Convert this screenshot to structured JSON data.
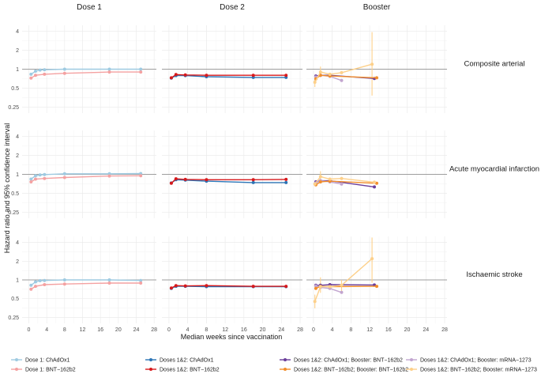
{
  "chart_data": {
    "type": "line",
    "ylabel": "Hazard ratio and 95% confidence interval",
    "xlabel": "Median weeks since vaccination",
    "x_ticks": [
      "0",
      "4",
      "8",
      "12",
      "16",
      "20",
      "24",
      "28"
    ],
    "y_ticks": [
      "0.25",
      "0.5",
      "1",
      "2",
      "4"
    ],
    "xlim": [
      -1.5,
      28.5
    ],
    "ylim": [
      0.2,
      5
    ],
    "y_scale": "log",
    "reference_line": 1,
    "columns": [
      "Dose 1",
      "Dose 2",
      "Booster"
    ],
    "rows": [
      "Composite arterial",
      "Acute myocardial infarction",
      "Ischaemic stroke"
    ],
    "series": [
      {
        "key": "d1_chad",
        "name": "Dose 1: ChAdOx1",
        "color": "#9ecae1",
        "column": "Dose 1",
        "data": {
          "Composite arterial": [
            [
              0.5,
              0.83
            ],
            [
              1.5,
              0.93
            ],
            [
              2.5,
              0.97
            ],
            [
              3.5,
              0.98
            ],
            [
              8,
              1.0
            ],
            [
              18,
              1.0
            ],
            [
              25,
              1.0
            ]
          ],
          "Acute myocardial infarction": [
            [
              0.5,
              0.84
            ],
            [
              1.5,
              0.95
            ],
            [
              2.5,
              0.98
            ],
            [
              3.5,
              0.99
            ],
            [
              8,
              1.02
            ],
            [
              18,
              1.02
            ],
            [
              25,
              1.03
            ]
          ],
          "Ischaemic stroke": [
            [
              0.5,
              0.82
            ],
            [
              1.5,
              0.93
            ],
            [
              2.5,
              0.97
            ],
            [
              3.5,
              0.98
            ],
            [
              8,
              1.0
            ],
            [
              18,
              1.0
            ],
            [
              25,
              0.98
            ]
          ]
        }
      },
      {
        "key": "d1_bnt",
        "name": "Dose 1: BNT−162b2",
        "color": "#f4a1a1",
        "column": "Dose 1",
        "data": {
          "Composite arterial": [
            [
              0.5,
              0.72
            ],
            [
              1.5,
              0.8
            ],
            [
              3.5,
              0.83
            ],
            [
              8,
              0.86
            ],
            [
              18,
              0.9
            ],
            [
              25,
              0.9
            ]
          ],
          "Acute myocardial infarction": [
            [
              0.5,
              0.76
            ],
            [
              1.5,
              0.84
            ],
            [
              3.5,
              0.86
            ],
            [
              8,
              0.89
            ],
            [
              18,
              0.94
            ],
            [
              25,
              0.95
            ]
          ],
          "Ischaemic stroke": [
            [
              0.5,
              0.71
            ],
            [
              1.5,
              0.79
            ],
            [
              3.5,
              0.84
            ],
            [
              8,
              0.86
            ],
            [
              18,
              0.89
            ],
            [
              25,
              0.89
            ]
          ]
        }
      },
      {
        "key": "d12_chad",
        "name": "Doses 1&2: ChAdOx1",
        "color": "#2b73b5",
        "column": "Dose 2",
        "data": {
          "Composite arterial": [
            [
              0.5,
              0.72
            ],
            [
              1.5,
              0.79
            ],
            [
              3.5,
              0.79
            ],
            [
              8,
              0.76
            ],
            [
              18,
              0.74
            ],
            [
              25,
              0.74
            ]
          ],
          "Acute myocardial infarction": [
            [
              0.5,
              0.73
            ],
            [
              1.5,
              0.82
            ],
            [
              3.5,
              0.81
            ],
            [
              8,
              0.78
            ],
            [
              18,
              0.74
            ],
            [
              25,
              0.74
            ]
          ],
          "Ischaemic stroke": [
            [
              0.5,
              0.73
            ],
            [
              1.5,
              0.79
            ],
            [
              3.5,
              0.79
            ],
            [
              8,
              0.78
            ],
            [
              18,
              0.78
            ],
            [
              25,
              0.78
            ]
          ]
        }
      },
      {
        "key": "d12_bnt",
        "name": "Doses 1&2: BNT−162b2",
        "color": "#d7191c",
        "column": "Dose 2",
        "data": {
          "Composite arterial": [
            [
              0.5,
              0.73
            ],
            [
              1.5,
              0.82
            ],
            [
              3.5,
              0.81
            ],
            [
              8,
              0.8
            ],
            [
              18,
              0.8
            ],
            [
              25,
              0.8
            ]
          ],
          "Acute myocardial infarction": [
            [
              0.5,
              0.72
            ],
            [
              1.5,
              0.85
            ],
            [
              3.5,
              0.83
            ],
            [
              8,
              0.82
            ],
            [
              18,
              0.82
            ],
            [
              25,
              0.83
            ]
          ],
          "Ischaemic stroke": [
            [
              0.5,
              0.74
            ],
            [
              1.5,
              0.81
            ],
            [
              3.5,
              0.8
            ],
            [
              8,
              0.81
            ],
            [
              18,
              0.79
            ],
            [
              25,
              0.79
            ]
          ]
        }
      },
      {
        "key": "b_chad_bnt",
        "name": "Doses 1&2: ChAdOx1; Booster: BNT−162b2",
        "color": "#6a3d9a",
        "column": "Booster",
        "data": {
          "Composite arterial": [
            [
              0.5,
              0.78
            ],
            [
              1.5,
              0.8
            ],
            [
              3.5,
              0.8
            ],
            [
              13,
              0.71
            ]
          ],
          "Acute myocardial infarction": [
            [
              0.5,
              0.76
            ],
            [
              1.5,
              0.79
            ],
            [
              3.5,
              0.79
            ],
            [
              13,
              0.63
            ]
          ],
          "Ischaemic stroke": [
            [
              0.5,
              0.82
            ],
            [
              1.5,
              0.82
            ],
            [
              3.5,
              0.84
            ],
            [
              13,
              0.83
            ]
          ]
        }
      },
      {
        "key": "b_chad_mrna",
        "name": "Doses 1&2: ChAdOx1; Booster: mRNA−1273",
        "color": "#c2a5cf",
        "column": "Booster",
        "data": {
          "Composite arterial": [
            [
              0.5,
              0.75
            ],
            [
              1.5,
              0.8
            ],
            [
              3.5,
              0.77
            ],
            [
              6,
              0.66
            ]
          ],
          "Acute myocardial infarction": [
            [
              0.5,
              0.73
            ],
            [
              1.5,
              0.79
            ],
            [
              3.5,
              0.76
            ],
            [
              6,
              0.7
            ]
          ],
          "Ischaemic stroke": [
            [
              0.5,
              0.8
            ],
            [
              1.5,
              0.76
            ],
            [
              3.5,
              0.73
            ],
            [
              6,
              0.63
            ]
          ]
        }
      },
      {
        "key": "b_bnt_bnt",
        "name": "Doses 1&2: BNT−162b2; Booster: BNT−162b2",
        "color": "#f28e2b",
        "column": "Booster",
        "data": {
          "Composite arterial": [
            [
              0.5,
              0.7
            ],
            [
              1.5,
              0.8
            ],
            [
              3.5,
              0.78
            ],
            [
              13.5,
              0.73
            ]
          ],
          "Acute myocardial infarction": [
            [
              0.5,
              0.68
            ],
            [
              1.5,
              0.76
            ],
            [
              3.5,
              0.78
            ],
            [
              13.5,
              0.72
            ]
          ],
          "Ischaemic stroke": [
            [
              0.5,
              0.73
            ],
            [
              1.5,
              0.79
            ],
            [
              3.5,
              0.78
            ],
            [
              13.5,
              0.79
            ]
          ]
        }
      },
      {
        "key": "b_bnt_mrna",
        "name": "Doses 1&2: BNT−162b2; Booster: mRNA−1273",
        "color": "#fdd08a",
        "column": "Booster",
        "data": {
          "Composite arterial": [
            [
              0.3,
              0.62
            ],
            [
              1.5,
              0.9
            ],
            [
              3.5,
              0.83
            ],
            [
              6,
              0.88
            ],
            [
              12.5,
              1.2
            ]
          ],
          "Acute myocardial infarction": [
            [
              0.3,
              0.7
            ],
            [
              1.5,
              0.92
            ],
            [
              3.5,
              0.84
            ],
            [
              6,
              0.86
            ],
            [
              13,
              0.75
            ]
          ],
          "Ischaemic stroke": [
            [
              0.3,
              0.45
            ],
            [
              1.5,
              0.78
            ],
            [
              3.5,
              0.78
            ],
            [
              6,
              0.82
            ],
            [
              12.5,
              2.2
            ]
          ]
        }
      }
    ],
    "error_bars": [
      {
        "series": "b_bnt_mrna",
        "row": "Composite arterial",
        "x": 12.5,
        "lo": 0.38,
        "hi": 3.9
      },
      {
        "series": "b_bnt_mrna",
        "row": "Composite arterial",
        "x": 1.5,
        "lo": 0.75,
        "hi": 1.1
      },
      {
        "series": "b_bnt_mrna",
        "row": "Composite arterial",
        "x": 0.3,
        "lo": 0.52,
        "hi": 0.74
      },
      {
        "series": "b_bnt_mrna",
        "row": "Acute myocardial infarction",
        "x": 1.5,
        "lo": 0.75,
        "hi": 1.12
      },
      {
        "series": "b_bnt_mrna",
        "row": "Ischaemic stroke",
        "x": 12.5,
        "lo": 0.9,
        "hi": 4.8
      },
      {
        "series": "b_bnt_mrna",
        "row": "Ischaemic stroke",
        "x": 1.5,
        "lo": 0.62,
        "hi": 1.1
      },
      {
        "series": "b_bnt_mrna",
        "row": "Ischaemic stroke",
        "x": 0.3,
        "lo": 0.35,
        "hi": 0.58
      },
      {
        "series": "b_bnt_mrna",
        "row": "Ischaemic stroke",
        "x": 6,
        "lo": 0.66,
        "hi": 1.0
      }
    ],
    "legend": {
      "position": "bottom",
      "order": [
        "d1_chad",
        "d12_chad",
        "b_chad_bnt",
        "b_chad_mrna",
        "d1_bnt",
        "d12_bnt",
        "b_bnt_bnt",
        "b_bnt_mrna"
      ]
    }
  }
}
